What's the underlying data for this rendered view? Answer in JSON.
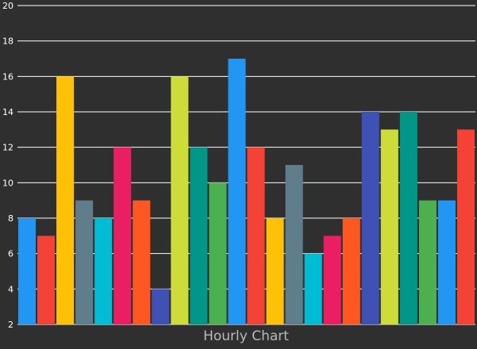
{
  "chart_data": {
    "type": "bar",
    "title": "Hourly Chart",
    "xlabel": "",
    "ylabel": "",
    "ylim": [
      2,
      20
    ],
    "yticks": [
      2,
      4,
      6,
      8,
      10,
      12,
      14,
      16,
      18,
      20
    ],
    "ytick_labels": [
      "2",
      "4",
      "6",
      "8",
      "10",
      "12",
      "14",
      "16",
      "18",
      "20"
    ],
    "grid": true,
    "legend": "none",
    "values": [
      8,
      7,
      16,
      9,
      8,
      12,
      9,
      4,
      16,
      12,
      10,
      17,
      12,
      8,
      11,
      6,
      7,
      8,
      14,
      13,
      14,
      9,
      9,
      13
    ],
    "colors": [
      "#2196f3",
      "#f44336",
      "#ffc107",
      "#607d8b",
      "#00bcd4",
      "#e91e63",
      "#ff5722",
      "#3f51b5",
      "#cddc39",
      "#009688",
      "#4caf50",
      "#2196f3",
      "#f44336",
      "#ffc107",
      "#607d8b",
      "#00bcd4",
      "#e91e63",
      "#ff5722",
      "#3f51b5",
      "#cddc39",
      "#009688",
      "#4caf50",
      "#2196f3",
      "#f44336"
    ],
    "background_color": "#2f2f2f",
    "grid_color": "#ffffff"
  }
}
